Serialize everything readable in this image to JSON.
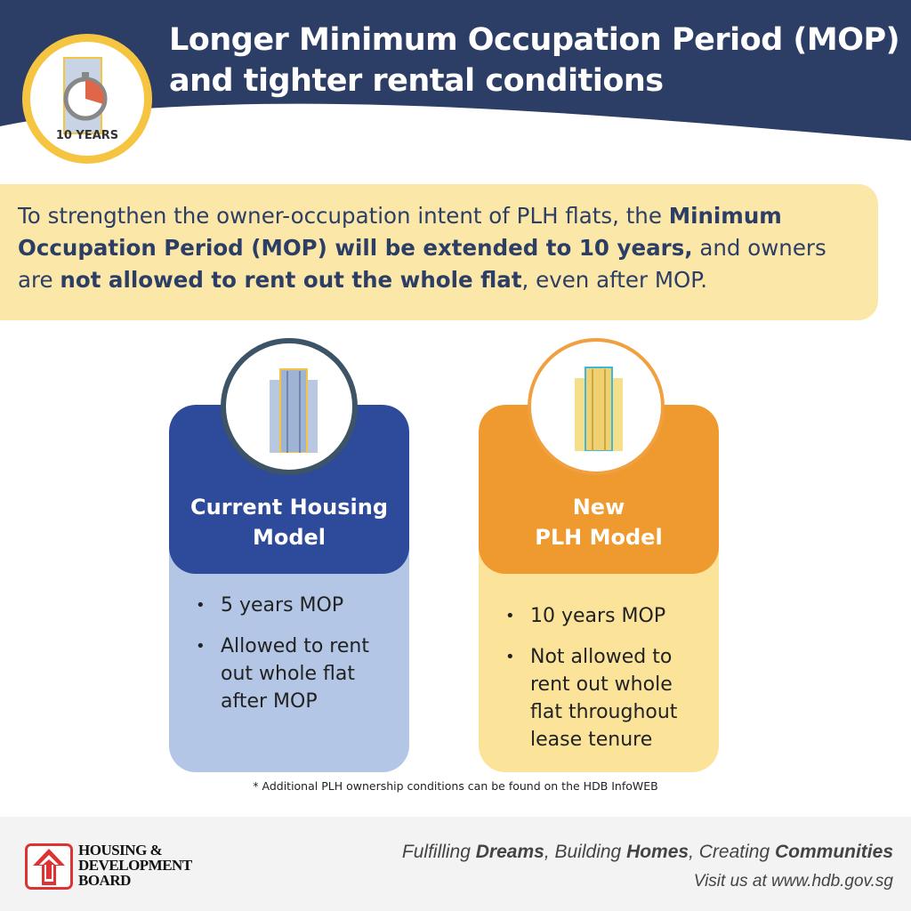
{
  "header": {
    "title_line1": "Longer Minimum Occupation Period (MOP)",
    "title_line2": "and tighter rental conditions",
    "badge_text": "10 YEARS",
    "badge_icon": "stopwatch-building-icon"
  },
  "intro": {
    "p1": "To strengthen the owner-occupation intent of PLH flats, the ",
    "b1": "Minimum Occupation Period (MOP) will be extended to 10 years,",
    "p2": " and owners are ",
    "b2": "not allowed to rent out the whole flat",
    "p3": ", even after MOP."
  },
  "cards": [
    {
      "title_line1": "Current Housing",
      "title_line2": "Model",
      "items": [
        "5 years MOP",
        "Allowed to rent out whole flat after MOP"
      ],
      "color": "#2e4a9a",
      "light": "#b3c6e6"
    },
    {
      "title_line1": "New",
      "title_line2": "PLH Model",
      "items": [
        "10 years MOP",
        "Not allowed to rent out whole flat throughout lease tenure"
      ],
      "color": "#ef9a2e",
      "light": "#fbe49a"
    }
  ],
  "footnote": "* Additional PLH ownership conditions  can be found on the HDB InfoWEB",
  "footer": {
    "logo_line1": "HOUSING &",
    "logo_line2": "DEVELOPMENT",
    "logo_line3": "BOARD",
    "slogan_1": "Fulfilling ",
    "slogan_b1": "Dreams",
    "slogan_2": ", Building ",
    "slogan_b2": "Homes",
    "slogan_3": ", Creating ",
    "slogan_b3": "Communities",
    "visit": "Visit us at www.hdb.gov.sg"
  }
}
